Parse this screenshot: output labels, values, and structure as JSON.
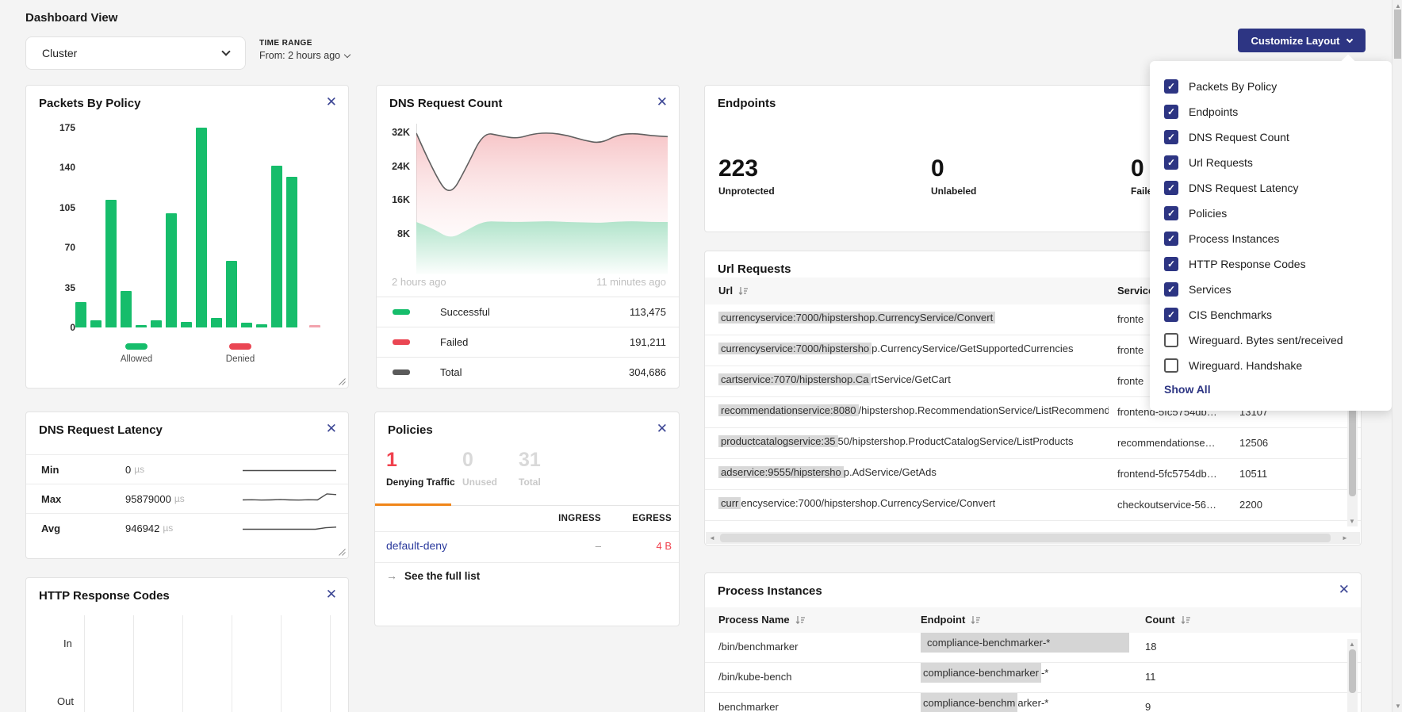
{
  "page": {
    "title": "Dashboard View"
  },
  "toolbar": {
    "view_select": "Cluster",
    "time_range_label": "TIME RANGE",
    "time_range_value": "From: 2 hours ago",
    "customize_button": "Customize Layout"
  },
  "customize_menu": {
    "items": [
      {
        "label": "Packets By Policy",
        "checked": true
      },
      {
        "label": "Endpoints",
        "checked": true
      },
      {
        "label": "DNS Request Count",
        "checked": true
      },
      {
        "label": "Url Requests",
        "checked": true
      },
      {
        "label": "DNS Request Latency",
        "checked": true
      },
      {
        "label": "Policies",
        "checked": true
      },
      {
        "label": "Process Instances",
        "checked": true
      },
      {
        "label": "HTTP Response Codes",
        "checked": true
      },
      {
        "label": "Services",
        "checked": true
      },
      {
        "label": "CIS Benchmarks",
        "checked": true
      },
      {
        "label": "Wireguard. Bytes sent/received",
        "checked": false
      },
      {
        "label": "Wireguard. Handshake",
        "checked": false
      }
    ],
    "show_all": "Show All"
  },
  "cards": {
    "packets_by_policy": {
      "title": "Packets By Policy",
      "legend": [
        {
          "label": "Allowed",
          "color": "#16bd6b"
        },
        {
          "label": "Denied",
          "color": "#ea4653"
        }
      ]
    },
    "dns_request_count": {
      "title": "DNS Request Count",
      "x_start": "2 hours ago",
      "x_end": "11 minutes ago",
      "legend": [
        {
          "label": "Successful",
          "value": "113,475",
          "color": "#16bd6b"
        },
        {
          "label": "Failed",
          "value": "191,211",
          "color": "#ea4653"
        },
        {
          "label": "Total",
          "value": "304,686",
          "color": "#5b5b5b"
        }
      ]
    },
    "endpoints": {
      "title": "Endpoints",
      "stats": [
        {
          "value": "223",
          "label": "Unprotected"
        },
        {
          "value": "0",
          "label": "Unlabeled"
        },
        {
          "value": "0",
          "label": "Failed"
        }
      ]
    },
    "url_requests": {
      "title": "Url Requests",
      "columns": [
        "Url",
        "Service"
      ],
      "rows": [
        {
          "url_hl": "currencyservice:7000/hipstershop.CurrencyService/Convert",
          "url_rest": "",
          "service": "fronte",
          "count": ""
        },
        {
          "url_hl": "currencyservice:7000/hipstersho",
          "url_rest": "p.CurrencyService/GetSupportedCurrencies",
          "service": "fronte",
          "count": ""
        },
        {
          "url_hl": "cartservice:7070/hipstershop.Ca",
          "url_rest": "rtService/GetCart",
          "service": "fronte",
          "count": ""
        },
        {
          "url_hl": "recommendationservice:8080",
          "url_rest": "/hipstershop.RecommendationService/ListRecommendations",
          "service": "frontend-5fc5754db…",
          "count": "13107"
        },
        {
          "url_hl": "productcatalogservice:35",
          "url_rest": "50/hipstershop.ProductCatalogService/ListProducts",
          "service": "recommendationse…",
          "count": "12506"
        },
        {
          "url_hl": "adservice:9555/hipstersho",
          "url_rest": "p.AdService/GetAds",
          "service": "frontend-5fc5754db…",
          "count": "10511"
        },
        {
          "url_hl": "curr",
          "url_rest": "encyservice:7000/hipstershop.CurrencyService/Convert",
          "service": "checkoutservice-56…",
          "count": "2200"
        }
      ]
    },
    "dns_request_latency": {
      "title": "DNS Request Latency",
      "rows": [
        {
          "label": "Min",
          "value": "0",
          "unit": "µs"
        },
        {
          "label": "Max",
          "value": "95879000",
          "unit": "µs"
        },
        {
          "label": "Avg",
          "value": "946942",
          "unit": "µs"
        }
      ]
    },
    "policies": {
      "title": "Policies",
      "tabs": [
        {
          "value": "1",
          "label": "Denying Traffic",
          "active": true
        },
        {
          "value": "0",
          "label": "Unused",
          "active": false
        },
        {
          "value": "31",
          "label": "Total",
          "active": false
        }
      ],
      "columns": [
        "INGRESS",
        "EGRESS"
      ],
      "rows": [
        {
          "name": "default-deny",
          "ingress": "–",
          "egress": "4 B"
        }
      ],
      "footer_link": "See the full list"
    },
    "http_response_codes": {
      "title": "HTTP Response Codes",
      "row_labels": [
        "In",
        "Out"
      ]
    },
    "process_instances": {
      "title": "Process Instances",
      "columns": [
        "Process Name",
        "Endpoint",
        "Count"
      ],
      "rows": [
        {
          "process": "/bin/benchmarker",
          "ep_hl": "compliance-benchmarker-*",
          "ep_rest": "",
          "block": true,
          "count": "18"
        },
        {
          "process": "/bin/kube-bench",
          "ep_hl": "compliance-benchmarker",
          "ep_rest": "-*",
          "block": false,
          "count": "11"
        },
        {
          "process": "benchmarker",
          "ep_hl": "compliance-benchm",
          "ep_rest": "arker-*",
          "block": false,
          "count": "9"
        }
      ]
    }
  },
  "chart_data": [
    {
      "id": "packets_by_policy",
      "type": "bar",
      "title": "Packets By Policy",
      "ylim": [
        0,
        175
      ],
      "yticks": [
        175,
        140,
        105,
        70,
        35,
        0
      ],
      "legend": [
        "Allowed",
        "Denied"
      ],
      "bars": [
        {
          "value": 22,
          "series": "Allowed"
        },
        {
          "value": 6,
          "series": "Allowed"
        },
        {
          "value": 112,
          "series": "Allowed"
        },
        {
          "value": 32,
          "series": "Allowed"
        },
        {
          "value": 2,
          "series": "Allowed"
        },
        {
          "value": 6,
          "series": "Allowed"
        },
        {
          "value": 100,
          "series": "Allowed"
        },
        {
          "value": 5,
          "series": "Allowed"
        },
        {
          "value": 175,
          "series": "Allowed"
        },
        {
          "value": 8,
          "series": "Allowed"
        },
        {
          "value": 58,
          "series": "Allowed"
        },
        {
          "value": 4,
          "series": "Allowed"
        },
        {
          "value": 3,
          "series": "Allowed"
        },
        {
          "value": 142,
          "series": "Allowed"
        },
        {
          "value": 132,
          "series": "Allowed"
        },
        {
          "value": 2,
          "series": "Denied"
        }
      ],
      "colors": {
        "Allowed": "#16bd6b",
        "Denied": "#f2a3ad"
      }
    },
    {
      "id": "dns_request_count",
      "type": "area",
      "x_range": [
        "2 hours ago",
        "11 minutes ago"
      ],
      "ylim": [
        0,
        34000
      ],
      "yticks": [
        32000,
        24000,
        16000,
        8000
      ],
      "ytick_labels": [
        "32K",
        "24K",
        "16K",
        "8K"
      ],
      "series": [
        {
          "name": "Total",
          "total": "304,686",
          "values": [
            32000,
            23000,
            16800,
            24000,
            32200,
            31400,
            30700,
            31900,
            32100,
            31500,
            30300,
            29600,
            31600,
            32000,
            31400,
            31200
          ]
        },
        {
          "name": "Successful",
          "total": "113,475",
          "values": [
            11000,
            9500,
            7000,
            9000,
            11200,
            11100,
            11000,
            11100,
            11200,
            11000,
            10900,
            10800,
            11100,
            11200,
            11000,
            11000
          ]
        }
      ],
      "failed_total": "191,211"
    },
    {
      "id": "dns_latency_sparklines",
      "type": "line",
      "series": [
        {
          "name": "Min",
          "values": [
            5,
            5,
            5,
            5,
            5,
            5,
            5,
            5,
            5,
            5
          ]
        },
        {
          "name": "Max",
          "values": [
            5,
            5.1,
            4.9,
            5,
            5.2,
            5,
            4.9,
            5.1,
            5,
            8.6,
            8.2
          ]
        },
        {
          "name": "Avg",
          "values": [
            5,
            5,
            5,
            5,
            5,
            5,
            5,
            5,
            5.9,
            6.3
          ]
        }
      ]
    }
  ]
}
